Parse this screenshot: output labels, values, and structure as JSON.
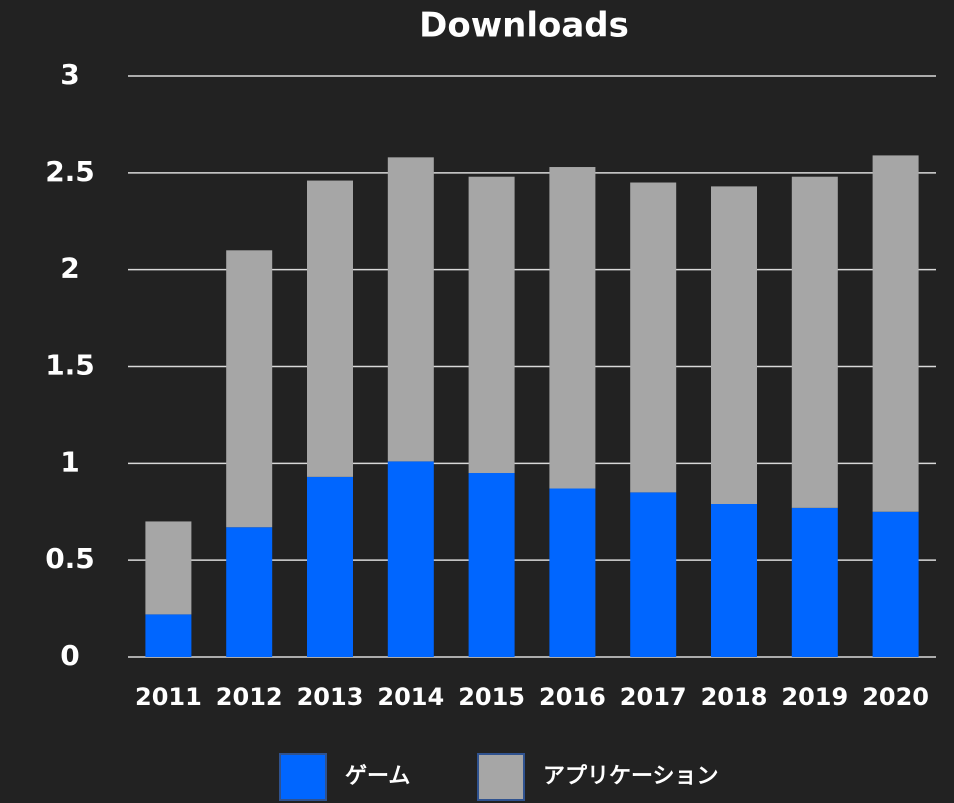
{
  "chart_data": {
    "type": "stacked_bar",
    "title": "Downloads",
    "categories": [
      "2011",
      "2012",
      "2013",
      "2014",
      "2015",
      "2016",
      "2017",
      "2018",
      "2019",
      "2020"
    ],
    "series": [
      {
        "name": "ゲーム",
        "color": "#0066ff",
        "values": [
          0.22,
          0.67,
          0.93,
          1.01,
          0.95,
          0.87,
          0.85,
          0.79,
          0.77,
          0.75
        ]
      },
      {
        "name": "アプリケーション",
        "color": "#a6a6a6",
        "values": [
          0.48,
          1.43,
          1.53,
          1.57,
          1.53,
          1.66,
          1.6,
          1.64,
          1.71,
          1.84
        ]
      }
    ],
    "ylim": [
      0,
      3
    ],
    "yticks": [
      0,
      0.5,
      1,
      1.5,
      2,
      2.5,
      3
    ],
    "grid": true,
    "legend": "bottom"
  }
}
